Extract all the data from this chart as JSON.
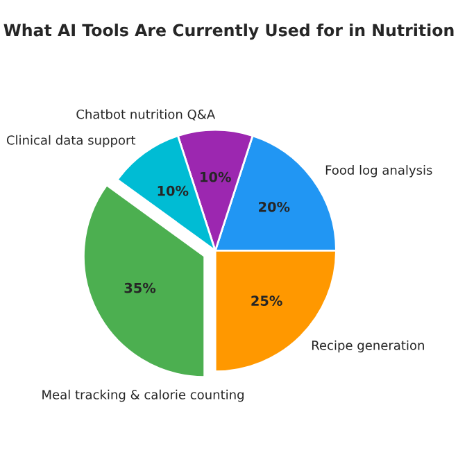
{
  "chart_data": {
    "type": "pie",
    "title": "What AI Tools Are Currently Used for in Nutrition",
    "categories": [
      "Food log analysis",
      "Chatbot nutrition Q&A",
      "Clinical data support",
      "Meal tracking & calorie counting",
      "Recipe generation"
    ],
    "values": [
      20,
      10,
      10,
      35,
      25
    ],
    "value_labels": [
      "20%",
      "10%",
      "10%",
      "35%",
      "25%"
    ],
    "colors": [
      "#2196f3",
      "#9c27b0",
      "#00bcd4",
      "#4caf50",
      "#ff9800"
    ]
  }
}
